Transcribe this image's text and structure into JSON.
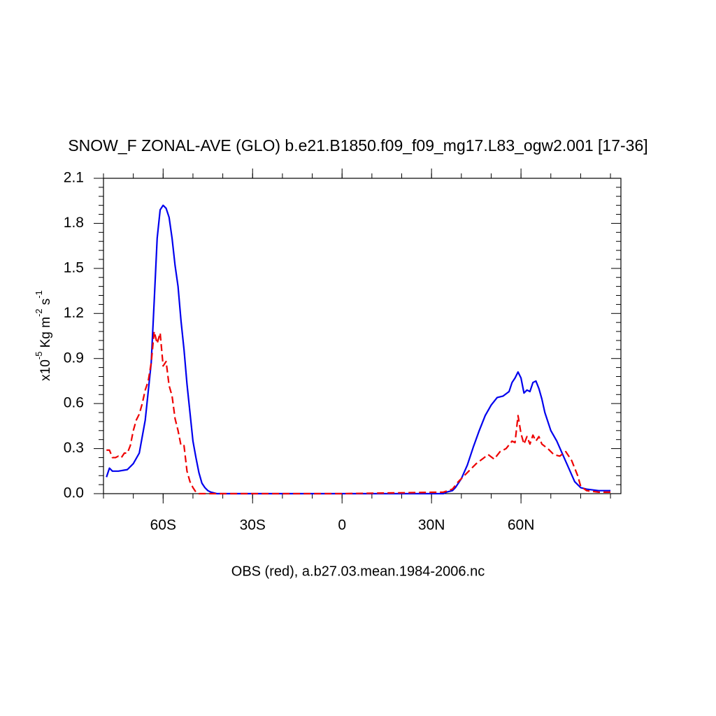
{
  "chart_data": {
    "type": "line",
    "title": "SNOW_F ZONAL-AVE (GLO) b.e21.B1850.f09_f09_mg17.L83_ogw2.001 [17-36]",
    "x_label": "OBS (red), a.b27.03.mean.1984-2006.nc",
    "y_label": [
      "x10",
      "-5",
      " Kg m",
      "-2",
      " s",
      "-1"
    ],
    "xlim": [
      -80,
      93.5
    ],
    "ylim": [
      0,
      2.1
    ],
    "xticks": [
      {
        "value": -60,
        "label": "60S"
      },
      {
        "value": -30,
        "label": "30S"
      },
      0,
      {
        "value": 30,
        "label": "30N"
      },
      {
        "value": 60,
        "label": "60N"
      }
    ],
    "yticks": [
      {
        "value": 0,
        "label": "0.0"
      },
      0.3,
      0.6,
      0.9,
      1.2,
      1.5,
      1.8,
      2.1
    ],
    "series": [
      {
        "color": "#0000ee",
        "dash": "solid",
        "x": [
          -79,
          -78,
          -77,
          -75,
          -72,
          -70,
          -68,
          -66,
          -64,
          -63,
          -62,
          -61,
          -60,
          -59,
          -58,
          -57,
          -56,
          -55,
          -54,
          -53,
          -52,
          -51,
          -50,
          -49,
          -48,
          -47,
          -46,
          -45,
          -44,
          -42,
          0,
          34,
          35,
          37,
          38,
          40,
          42,
          44,
          46,
          48,
          50,
          52,
          54,
          56,
          57,
          58,
          59,
          60,
          61,
          62,
          63,
          64,
          65,
          66,
          67,
          68,
          70,
          72,
          74,
          76,
          78,
          80,
          82,
          86,
          90
        ],
        "values": [
          0.11,
          0.17,
          0.15,
          0.15,
          0.16,
          0.2,
          0.27,
          0.49,
          0.87,
          1.28,
          1.7,
          1.89,
          1.92,
          1.9,
          1.84,
          1.7,
          1.52,
          1.38,
          1.15,
          0.96,
          0.73,
          0.54,
          0.35,
          0.24,
          0.14,
          0.07,
          0.04,
          0.02,
          0.01,
          0,
          0,
          0,
          0.01,
          0.02,
          0.04,
          0.1,
          0.19,
          0.31,
          0.42,
          0.52,
          0.59,
          0.64,
          0.65,
          0.68,
          0.74,
          0.77,
          0.81,
          0.77,
          0.67,
          0.69,
          0.68,
          0.74,
          0.75,
          0.7,
          0.63,
          0.54,
          0.42,
          0.35,
          0.26,
          0.17,
          0.08,
          0.04,
          0.03,
          0.02,
          0.02
        ]
      },
      {
        "color": "#ee0000",
        "dash": "dashed",
        "x": [
          -79,
          -78,
          -77,
          -76,
          -75,
          -74,
          -73,
          -72,
          -71,
          -70,
          -69,
          -68,
          -67,
          -66,
          -65,
          -64,
          -63,
          -62,
          -61,
          -60,
          -59,
          -58,
          -57,
          -56,
          -55,
          -54,
          -53,
          -52,
          -51,
          -50,
          -49,
          -48,
          0,
          34,
          37,
          39,
          41,
          43,
          45,
          47,
          49,
          51,
          53,
          55,
          57,
          58,
          59,
          60,
          61,
          62,
          63,
          64,
          65,
          66,
          67,
          69,
          71,
          73,
          75,
          77,
          79,
          80,
          82,
          86,
          90
        ],
        "values": [
          0.29,
          0.29,
          0.24,
          0.24,
          0.25,
          0.24,
          0.27,
          0.27,
          0.32,
          0.42,
          0.49,
          0.53,
          0.6,
          0.69,
          0.75,
          0.87,
          1.08,
          1.0,
          1.07,
          0.85,
          0.88,
          0.72,
          0.65,
          0.5,
          0.42,
          0.32,
          0.32,
          0.15,
          0.08,
          0.04,
          0.01,
          0,
          0,
          0.01,
          0.03,
          0.08,
          0.12,
          0.16,
          0.2,
          0.23,
          0.26,
          0.23,
          0.28,
          0.3,
          0.35,
          0.34,
          0.52,
          0.4,
          0.33,
          0.38,
          0.33,
          0.39,
          0.35,
          0.38,
          0.33,
          0.3,
          0.26,
          0.25,
          0.28,
          0.22,
          0.12,
          0.05,
          0.02,
          0.01,
          0.01
        ]
      }
    ]
  }
}
